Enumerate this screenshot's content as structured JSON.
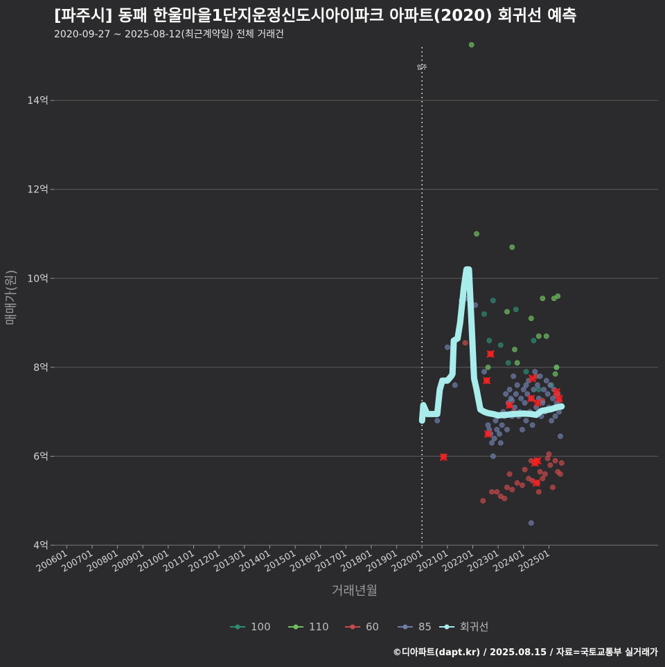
{
  "header": {
    "title": "[파주시] 동패 한울마을1단지운정신도시아이파크 아파트(2020) 회귀선 예측",
    "subtitle": "2020-09-27 ~ 2025-08-12(최근계약일) 전체 거래건",
    "credit": "©디아파트(dapt.kr) / 2025.08.15 / 자료=국토교통부 실거래가"
  },
  "chart_data": {
    "type": "scatter",
    "xlabel": "거래년월",
    "ylabel": "매매가(원)",
    "x_ticks": [
      "200601",
      "200701",
      "200801",
      "200901",
      "201001",
      "201101",
      "201201",
      "201301",
      "201401",
      "201501",
      "201601",
      "201701",
      "201801",
      "201901",
      "202001",
      "202101",
      "202201",
      "202301",
      "202401",
      "202501"
    ],
    "y_ticks": [
      {
        "value": 4,
        "label": "4억"
      },
      {
        "value": 6,
        "label": "6억"
      },
      {
        "value": 8,
        "label": "8억"
      },
      {
        "value": 10,
        "label": "10억"
      },
      {
        "value": 12,
        "label": "12억"
      },
      {
        "value": 14,
        "label": "14억"
      }
    ],
    "xlim": [
      2005.5,
      2029.3
    ],
    "ylim": [
      4,
      15.2
    ],
    "grid": true,
    "legend_position": "bottom",
    "reference_line": {
      "x": 2020.0,
      "label": "입주"
    },
    "colors": {
      "100": "#2e8b72",
      "110": "#6fbf5f",
      "60": "#c84a4a",
      "85": "#6f7fa8",
      "regression": "#a8ecec",
      "highlight": "#ff1e1e"
    },
    "series": [
      {
        "name": "100",
        "points": [
          [
            2022.45,
            9.2
          ],
          [
            2022.65,
            8.6
          ],
          [
            2022.8,
            9.5
          ],
          [
            2023.1,
            8.5
          ],
          [
            2023.4,
            8.1
          ],
          [
            2023.7,
            9.3
          ],
          [
            2024.1,
            7.9
          ],
          [
            2024.4,
            8.6
          ],
          [
            2024.6,
            7.5
          ],
          [
            2025.1,
            7.6
          ],
          [
            2025.3,
            8.0
          ]
        ]
      },
      {
        "name": "110",
        "points": [
          [
            2021.95,
            15.25
          ],
          [
            2022.15,
            11.0
          ],
          [
            2022.6,
            8.0
          ],
          [
            2023.35,
            9.25
          ],
          [
            2023.55,
            10.7
          ],
          [
            2023.65,
            8.4
          ],
          [
            2023.75,
            8.1
          ],
          [
            2024.3,
            9.1
          ],
          [
            2024.6,
            8.7
          ],
          [
            2024.75,
            9.55
          ],
          [
            2024.9,
            8.7
          ],
          [
            2025.2,
            9.55
          ],
          [
            2025.35,
            9.6
          ],
          [
            2025.3,
            8.0
          ],
          [
            2025.25,
            7.85
          ]
        ]
      },
      {
        "name": "60",
        "points": [
          [
            2020.85,
            6.0
          ],
          [
            2021.7,
            8.55
          ],
          [
            2022.55,
            7.7
          ],
          [
            2022.7,
            8.3
          ],
          [
            2022.6,
            6.5
          ],
          [
            2022.4,
            5.0
          ],
          [
            2022.75,
            5.2
          ],
          [
            2022.95,
            5.2
          ],
          [
            2023.1,
            5.1
          ],
          [
            2023.25,
            5.05
          ],
          [
            2023.35,
            5.3
          ],
          [
            2023.45,
            5.6
          ],
          [
            2023.55,
            5.25
          ],
          [
            2023.75,
            5.4
          ],
          [
            2023.95,
            5.35
          ],
          [
            2024.05,
            5.7
          ],
          [
            2024.2,
            5.5
          ],
          [
            2024.35,
            5.45
          ],
          [
            2024.45,
            5.85
          ],
          [
            2024.5,
            5.9
          ],
          [
            2024.55,
            5.4
          ],
          [
            2024.65,
            5.65
          ],
          [
            2024.75,
            5.5
          ],
          [
            2024.85,
            5.6
          ],
          [
            2024.95,
            5.95
          ],
          [
            2025.05,
            5.8
          ],
          [
            2025.15,
            5.3
          ],
          [
            2025.25,
            5.9
          ],
          [
            2025.35,
            5.65
          ],
          [
            2025.45,
            5.6
          ],
          [
            2025.5,
            5.85
          ],
          [
            2024.3,
            5.9
          ],
          [
            2024.6,
            5.2
          ],
          [
            2025.0,
            6.05
          ],
          [
            2023.6,
            7.0
          ],
          [
            2024.75,
            7.25
          ],
          [
            2024.5,
            7.8
          ],
          [
            2025.3,
            7.35
          ],
          [
            2025.4,
            7.25
          ],
          [
            2023.45,
            7.15
          ]
        ]
      },
      {
        "name": "85",
        "points": [
          [
            2020.6,
            6.8
          ],
          [
            2021.0,
            8.45
          ],
          [
            2021.3,
            7.6
          ],
          [
            2021.55,
            9.5
          ],
          [
            2021.65,
            9.7
          ],
          [
            2021.75,
            9.55
          ],
          [
            2021.85,
            10.0
          ],
          [
            2022.0,
            8.0
          ],
          [
            2022.1,
            9.4
          ],
          [
            2022.3,
            7.1
          ],
          [
            2022.45,
            7.9
          ],
          [
            2022.6,
            6.7
          ],
          [
            2022.65,
            6.6
          ],
          [
            2022.7,
            6.5
          ],
          [
            2022.75,
            6.3
          ],
          [
            2022.8,
            6.0
          ],
          [
            2022.85,
            6.4
          ],
          [
            2022.9,
            6.8
          ],
          [
            2022.95,
            6.6
          ],
          [
            2023.0,
            6.9
          ],
          [
            2023.05,
            6.5
          ],
          [
            2023.1,
            6.3
          ],
          [
            2023.15,
            6.7
          ],
          [
            2023.2,
            7.0
          ],
          [
            2023.25,
            6.9
          ],
          [
            2023.3,
            7.4
          ],
          [
            2023.35,
            6.6
          ],
          [
            2023.4,
            7.2
          ],
          [
            2023.45,
            7.5
          ],
          [
            2023.5,
            7.3
          ],
          [
            2023.55,
            6.9
          ],
          [
            2023.6,
            7.8
          ],
          [
            2023.65,
            7.1
          ],
          [
            2023.7,
            7.4
          ],
          [
            2023.75,
            7.6
          ],
          [
            2023.8,
            6.9
          ],
          [
            2023.85,
            7.0
          ],
          [
            2023.9,
            7.3
          ],
          [
            2023.95,
            6.6
          ],
          [
            2024.0,
            7.5
          ],
          [
            2024.05,
            7.2
          ],
          [
            2024.1,
            6.8
          ],
          [
            2024.15,
            7.4
          ],
          [
            2024.2,
            7.7
          ],
          [
            2024.25,
            7.0
          ],
          [
            2024.3,
            7.3
          ],
          [
            2024.35,
            6.7
          ],
          [
            2024.4,
            7.5
          ],
          [
            2024.45,
            7.9
          ],
          [
            2024.5,
            7.1
          ],
          [
            2024.55,
            7.6
          ],
          [
            2024.6,
            7.3
          ],
          [
            2024.65,
            7.8
          ],
          [
            2024.7,
            6.9
          ],
          [
            2024.75,
            7.2
          ],
          [
            2024.8,
            7.5
          ],
          [
            2024.85,
            7.0
          ],
          [
            2024.9,
            7.7
          ],
          [
            2024.95,
            7.4
          ],
          [
            2025.0,
            7.1
          ],
          [
            2025.05,
            7.6
          ],
          [
            2025.1,
            6.8
          ],
          [
            2025.15,
            7.3
          ],
          [
            2025.2,
            7.5
          ],
          [
            2025.25,
            6.9
          ],
          [
            2025.3,
            7.2
          ],
          [
            2025.35,
            7.4
          ],
          [
            2025.4,
            7.0
          ],
          [
            2025.45,
            6.45
          ],
          [
            2024.3,
            4.5
          ],
          [
            2023.55,
            7.25
          ],
          [
            2024.1,
            7.6
          ]
        ]
      }
    ],
    "regression": [
      [
        2020.0,
        6.8
      ],
      [
        2020.05,
        7.15
      ],
      [
        2020.2,
        6.95
      ],
      [
        2020.6,
        6.95
      ],
      [
        2020.7,
        7.5
      ],
      [
        2020.8,
        7.7
      ],
      [
        2021.0,
        7.7
      ],
      [
        2021.15,
        7.8
      ],
      [
        2021.2,
        7.85
      ],
      [
        2021.25,
        8.6
      ],
      [
        2021.4,
        8.65
      ],
      [
        2021.5,
        9.0
      ],
      [
        2021.65,
        9.8
      ],
      [
        2021.75,
        10.2
      ],
      [
        2021.85,
        10.2
      ],
      [
        2021.95,
        9.0
      ],
      [
        2022.05,
        7.75
      ],
      [
        2022.15,
        7.5
      ],
      [
        2022.3,
        7.05
      ],
      [
        2022.45,
        7.0
      ],
      [
        2022.6,
        6.97
      ],
      [
        2022.8,
        6.95
      ],
      [
        2023.0,
        6.92
      ],
      [
        2023.3,
        6.93
      ],
      [
        2023.6,
        6.95
      ],
      [
        2024.0,
        6.96
      ],
      [
        2024.3,
        6.95
      ],
      [
        2024.5,
        6.93
      ],
      [
        2024.7,
        7.02
      ],
      [
        2024.9,
        7.04
      ],
      [
        2025.1,
        7.06
      ],
      [
        2025.3,
        7.1
      ],
      [
        2025.5,
        7.12
      ]
    ],
    "highlights": [
      [
        2020.85,
        5.98
      ],
      [
        2022.55,
        7.7
      ],
      [
        2022.7,
        8.3
      ],
      [
        2022.6,
        6.5
      ],
      [
        2023.45,
        7.15
      ],
      [
        2024.35,
        7.75
      ],
      [
        2024.3,
        7.3
      ],
      [
        2024.55,
        7.2
      ],
      [
        2024.45,
        5.85
      ],
      [
        2024.55,
        5.9
      ],
      [
        2024.5,
        5.4
      ],
      [
        2025.3,
        7.45
      ],
      [
        2025.4,
        7.3
      ]
    ],
    "legend": [
      {
        "label": "100",
        "color": "#2e8b72"
      },
      {
        "label": "110",
        "color": "#6fbf5f"
      },
      {
        "label": "60",
        "color": "#c84a4a"
      },
      {
        "label": "85",
        "color": "#6f7fa8"
      },
      {
        "label": "회귀선",
        "color": "#a8ecec"
      }
    ]
  }
}
